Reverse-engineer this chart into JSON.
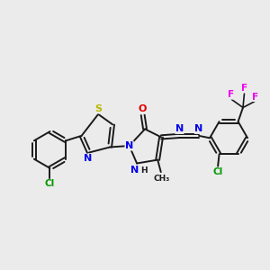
{
  "bg_color": "#ebebeb",
  "bond_color": "#1a1a1a",
  "atom_colors": {
    "S": "#b8b800",
    "N": "#0000ee",
    "O": "#dd0000",
    "Cl": "#009900",
    "F": "#ee00ee",
    "C": "#1a1a1a"
  },
  "figsize": [
    3.0,
    3.0
  ],
  "dpi": 100
}
